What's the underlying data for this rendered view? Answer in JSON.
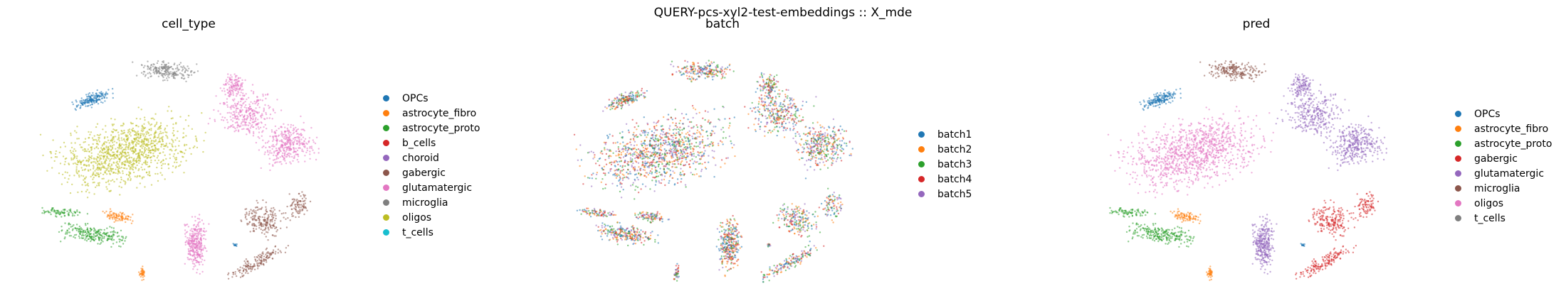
{
  "suptitle": "QUERY-pcs-xyl2-test-embeddings :: X_mde",
  "chart_data": [
    {
      "type": "scatter",
      "title": "cell_type",
      "legend": [
        {
          "label": "OPCs",
          "color": "#1f77b4"
        },
        {
          "label": "astrocyte_fibro",
          "color": "#ff7f0e"
        },
        {
          "label": "astrocyte_proto",
          "color": "#2ca02c"
        },
        {
          "label": "b_cells",
          "color": "#d62728"
        },
        {
          "label": "choroid",
          "color": "#9467bd"
        },
        {
          "label": "gabergic",
          "color": "#8c564b"
        },
        {
          "label": "glutamatergic",
          "color": "#e377c2"
        },
        {
          "label": "microglia",
          "color": "#7f7f7f"
        },
        {
          "label": "oligos",
          "color": "#bcbd22"
        },
        {
          "label": "t_cells",
          "color": "#17becf"
        }
      ],
      "legend_placement": "right",
      "axes_visible": false
    },
    {
      "type": "scatter",
      "title": "batch",
      "legend": [
        {
          "label": "batch1",
          "color": "#1f77b4"
        },
        {
          "label": "batch2",
          "color": "#ff7f0e"
        },
        {
          "label": "batch3",
          "color": "#2ca02c"
        },
        {
          "label": "batch4",
          "color": "#d62728"
        },
        {
          "label": "batch5",
          "color": "#9467bd"
        }
      ],
      "legend_placement": "right",
      "axes_visible": false
    },
    {
      "type": "scatter",
      "title": "pred",
      "legend": [
        {
          "label": "OPCs",
          "color": "#1f77b4"
        },
        {
          "label": "astrocyte_fibro",
          "color": "#ff7f0e"
        },
        {
          "label": "astrocyte_proto",
          "color": "#2ca02c"
        },
        {
          "label": "gabergic",
          "color": "#d62728"
        },
        {
          "label": "glutamatergic",
          "color": "#9467bd"
        },
        {
          "label": "microglia",
          "color": "#8c564b"
        },
        {
          "label": "oligos",
          "color": "#e377c2"
        },
        {
          "label": "t_cells",
          "color": "#7f7f7f"
        }
      ],
      "legend_placement": "right",
      "axes_visible": false
    }
  ]
}
